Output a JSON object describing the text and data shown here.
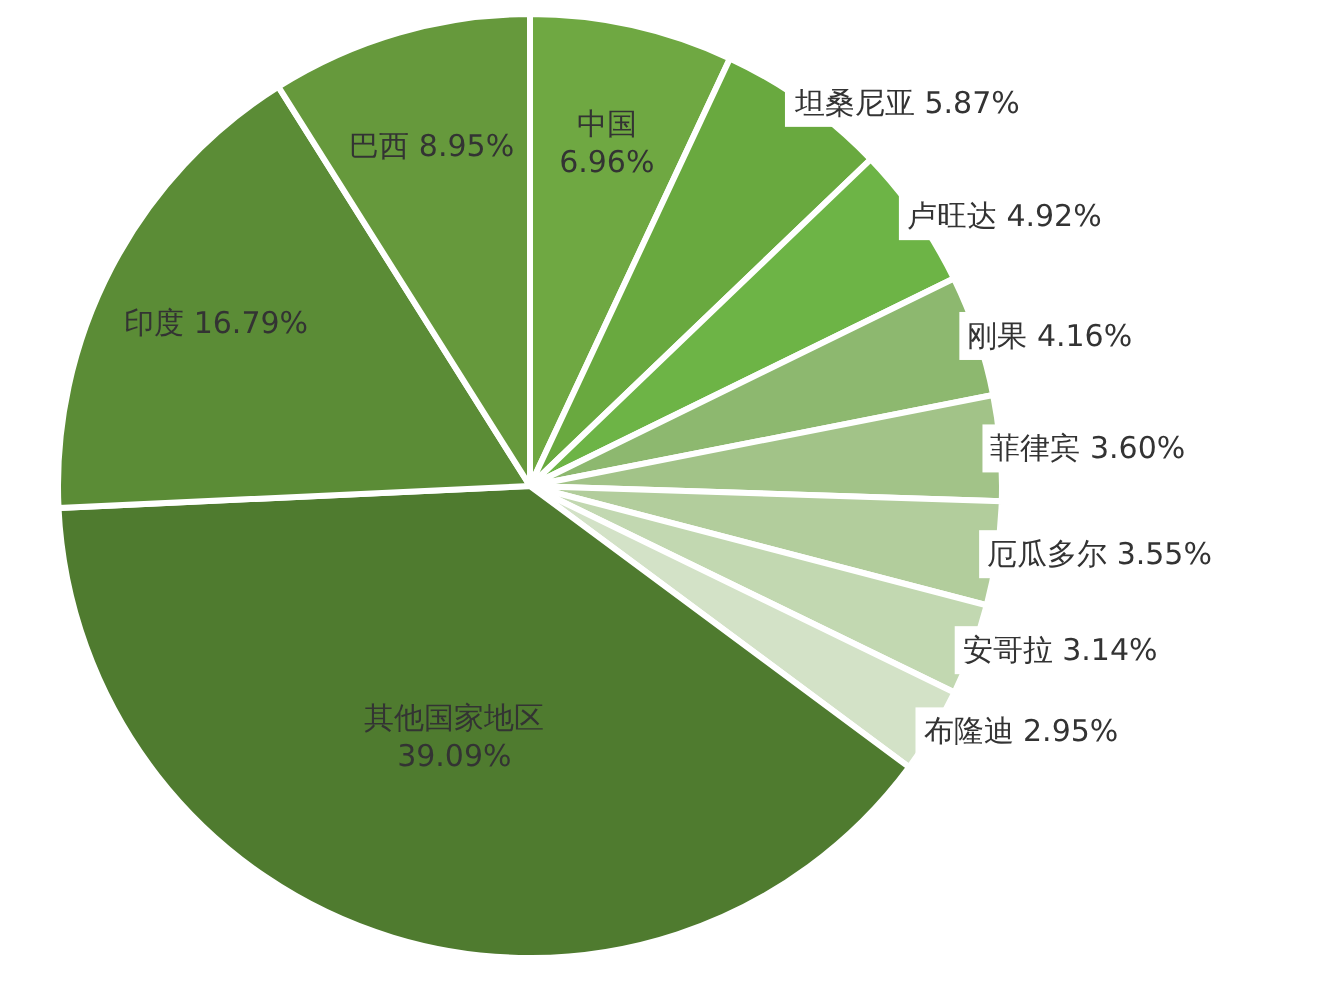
{
  "chart_data": {
    "type": "pie",
    "categories": [
      "中国",
      "坦桑尼亚",
      "卢旺达",
      "刚果",
      "菲律宾",
      "厄瓜多尔",
      "安哥拉",
      "布隆迪",
      "其他国家地区",
      "印度",
      "巴西"
    ],
    "values": [
      6.96,
      5.87,
      4.92,
      4.16,
      3.6,
      3.55,
      3.14,
      2.95,
      39.09,
      16.79,
      8.95
    ],
    "value_labels": [
      "6.96%",
      "5.87%",
      "4.92%",
      "4.16%",
      "3.60%",
      "3.55%",
      "3.14%",
      "2.95%",
      "39.09%",
      "16.79%",
      "8.95%"
    ],
    "colors": [
      "#6fa842",
      "#69a93f",
      "#6db446",
      "#8db86f",
      "#a2c388",
      "#b2cd9c",
      "#c2d8b1",
      "#d3e2c7",
      "#4f7b2f",
      "#5b8c36",
      "#66993c"
    ]
  }
}
